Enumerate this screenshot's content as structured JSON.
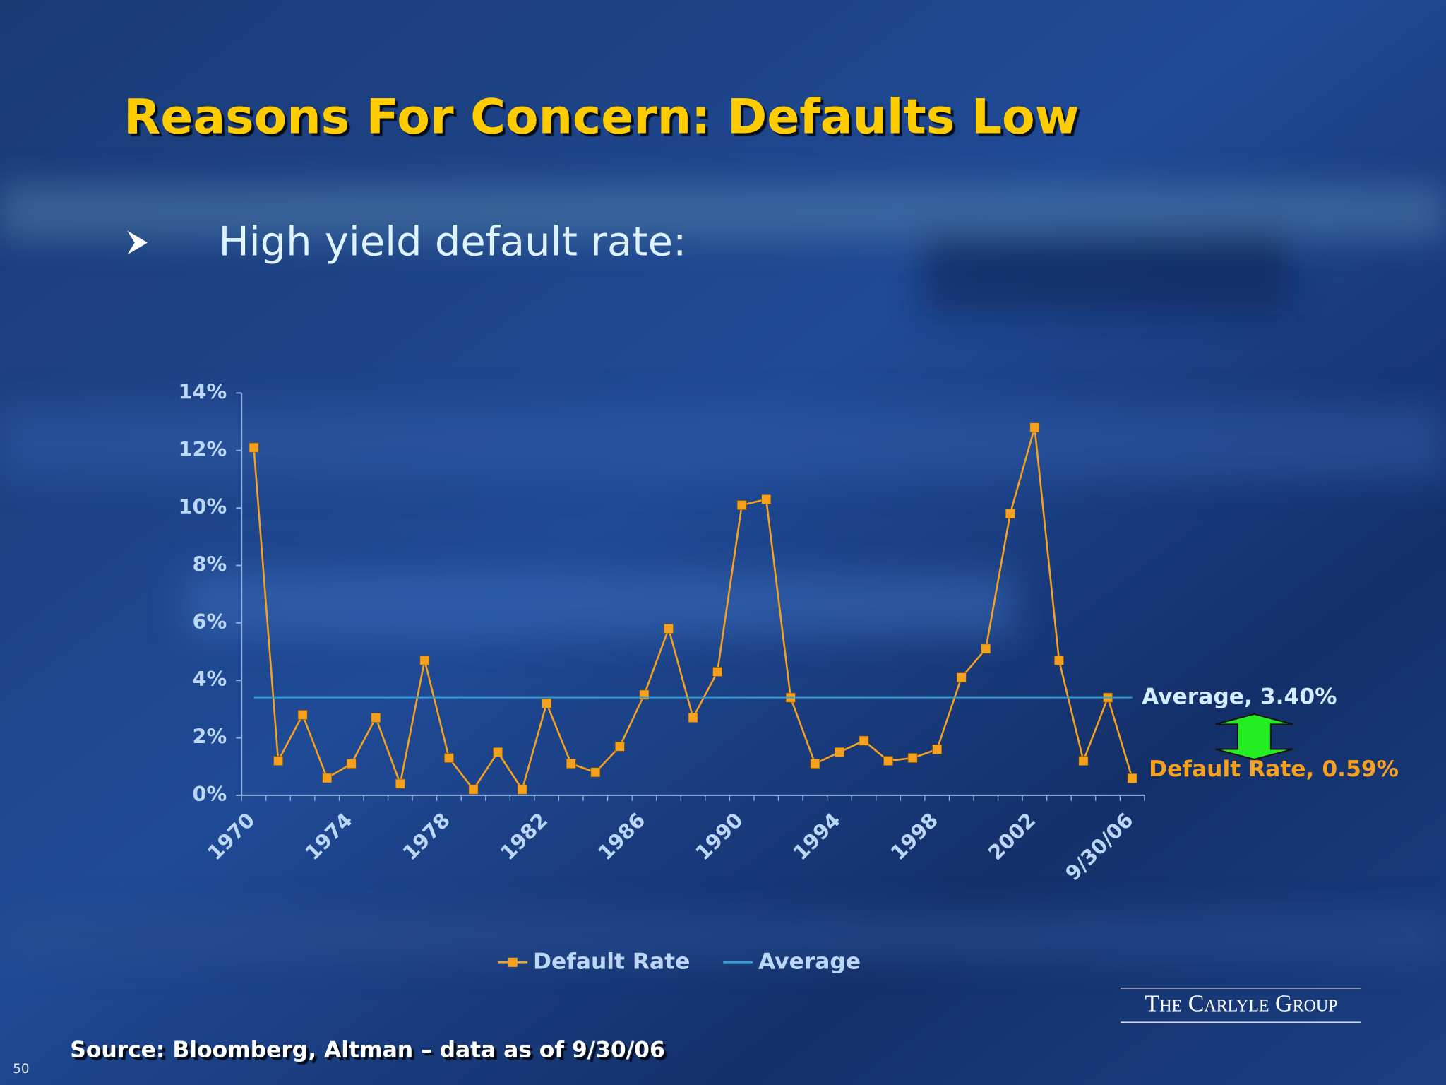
{
  "slide": {
    "title": "Reasons For Concern: Defaults Low",
    "bullet": "High yield default rate:",
    "source": "Source: Bloomberg, Altman – data as of 9/30/06",
    "logo": "The Carlyle Group",
    "page_number": "50"
  },
  "chart_data": {
    "type": "line",
    "categories": [
      "1970",
      null,
      null,
      null,
      "1974",
      null,
      null,
      null,
      "1978",
      null,
      null,
      null,
      "1982",
      null,
      null,
      null,
      "1986",
      null,
      null,
      null,
      "1990",
      null,
      null,
      null,
      "1994",
      null,
      null,
      null,
      "1998",
      null,
      null,
      null,
      "2002",
      null,
      null,
      null,
      "9/30/06"
    ],
    "series": [
      {
        "name": "Default Rate",
        "color": "#f5a11e",
        "marker": "square",
        "values": [
          12.1,
          1.2,
          2.8,
          0.6,
          1.1,
          2.7,
          0.4,
          4.7,
          1.3,
          0.2,
          1.5,
          0.2,
          3.2,
          1.1,
          0.8,
          1.7,
          3.5,
          5.8,
          2.7,
          4.3,
          10.1,
          10.3,
          3.4,
          1.1,
          1.5,
          1.9,
          1.2,
          1.3,
          1.6,
          4.1,
          5.1,
          9.8,
          12.8,
          4.7,
          1.2,
          3.4,
          0.59
        ]
      },
      {
        "name": "Average",
        "color": "#2aa6dc",
        "values": [
          3.4,
          3.4,
          3.4,
          3.4,
          3.4,
          3.4,
          3.4,
          3.4,
          3.4,
          3.4,
          3.4,
          3.4,
          3.4,
          3.4,
          3.4,
          3.4,
          3.4,
          3.4,
          3.4,
          3.4,
          3.4,
          3.4,
          3.4,
          3.4,
          3.4,
          3.4,
          3.4,
          3.4,
          3.4,
          3.4,
          3.4,
          3.4,
          3.4,
          3.4,
          3.4,
          3.4,
          3.4
        ]
      }
    ],
    "ylim": [
      0,
      14
    ],
    "yticks": [
      {
        "value": 0,
        "label": "0%"
      },
      {
        "value": 2,
        "label": "2%"
      },
      {
        "value": 4,
        "label": "4%"
      },
      {
        "value": 6,
        "label": "6%"
      },
      {
        "value": 8,
        "label": "8%"
      },
      {
        "value": 10,
        "label": "10%"
      },
      {
        "value": 12,
        "label": "12%"
      },
      {
        "value": 14,
        "label": "14%"
      }
    ],
    "annotations": [
      {
        "text": "Average, 3.40%",
        "color": "#d4ecff"
      },
      {
        "text": "Default Rate, 0.59%",
        "color": "#f5a11e"
      }
    ],
    "legend": "bottom"
  }
}
